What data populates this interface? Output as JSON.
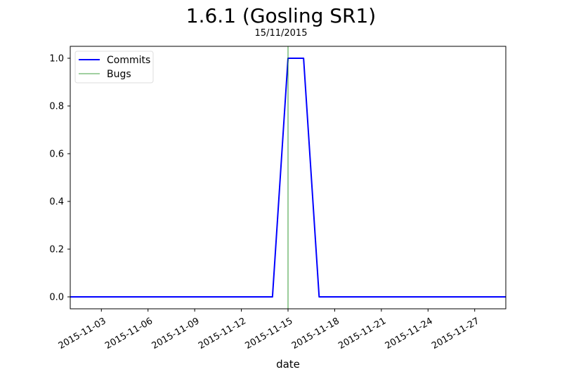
{
  "chart_data": {
    "type": "line",
    "title": "1.6.1 (Gosling SR1)",
    "subtitle": "15/11/2015",
    "xlabel": "date",
    "ylabel": "",
    "x_range": [
      "2015-11-01",
      "2015-11-29"
    ],
    "ylim": [
      -0.05,
      1.05
    ],
    "y_ticks": [
      0.0,
      0.2,
      0.4,
      0.6,
      0.8,
      1.0
    ],
    "y_tick_labels": [
      "0.0",
      "0.2",
      "0.4",
      "0.6",
      "0.8",
      "1.0"
    ],
    "x_ticks": [
      "2015-11-03",
      "2015-11-06",
      "2015-11-09",
      "2015-11-12",
      "2015-11-15",
      "2015-11-18",
      "2015-11-21",
      "2015-11-24",
      "2015-11-27"
    ],
    "grid": false,
    "legend_position": "upper-left",
    "series": [
      {
        "name": "Commits",
        "color": "#0000ff",
        "points": [
          {
            "x": "2015-11-01",
            "y": 0
          },
          {
            "x": "2015-11-14",
            "y": 0
          },
          {
            "x": "2015-11-15",
            "y": 1
          },
          {
            "x": "2015-11-16",
            "y": 1
          },
          {
            "x": "2015-11-17",
            "y": 0
          },
          {
            "x": "2015-11-29",
            "y": 0
          }
        ]
      },
      {
        "name": "Bugs",
        "color": "#008000",
        "vlines": [
          "2015-11-15"
        ]
      }
    ]
  }
}
